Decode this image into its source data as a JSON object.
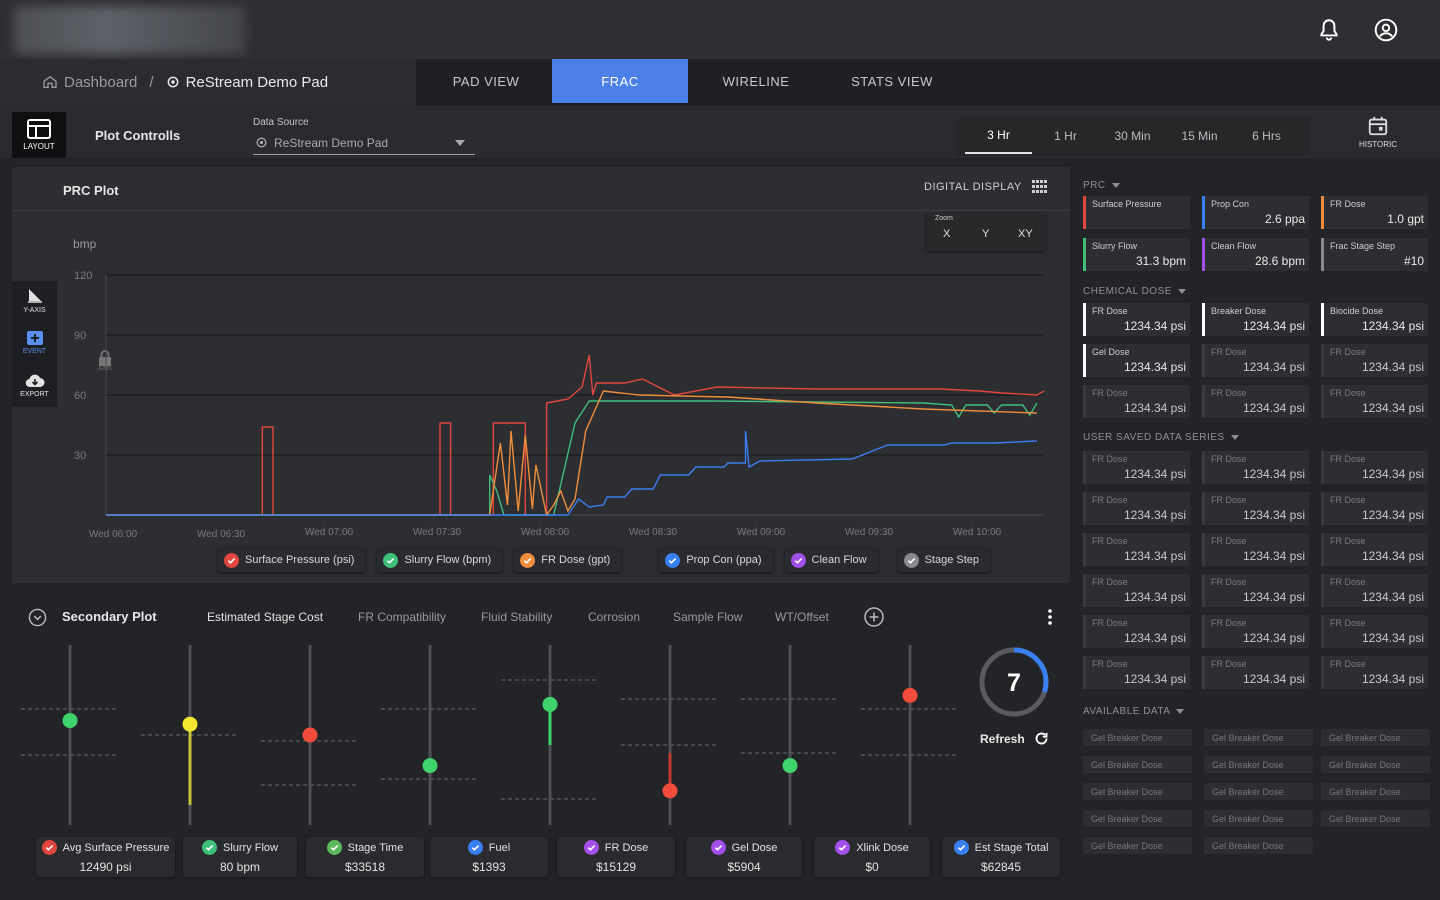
{
  "header": {
    "bell_icon": "bell-icon",
    "user_icon": "user-circle-icon"
  },
  "breadcrumb": {
    "home": "Dashboard",
    "separator": "/",
    "pad": "ReStream Demo Pad"
  },
  "nav_tabs": [
    {
      "label": "PAD VIEW",
      "active": false
    },
    {
      "label": "FRAC",
      "active": true
    },
    {
      "label": "WIRELINE",
      "active": false
    },
    {
      "label": "STATS VIEW",
      "active": false
    }
  ],
  "controls": {
    "layout_label": "LAYOUT",
    "plot_controls_label": "Plot Controlls",
    "data_source_label": "Data Source",
    "data_source_value": "ReStream Demo Pad",
    "time_ranges": [
      "3 Hr",
      "1 Hr",
      "30 Min",
      "15 Min",
      "6 Hrs"
    ],
    "active_time_range": "3 Hr",
    "historic_label": "HISTORIC"
  },
  "plot": {
    "title": "PRC Plot",
    "digital_display": "DIGITAL DISPLAY",
    "zoom_label": "Zoom",
    "zoom_options": [
      "X",
      "Y",
      "XY"
    ],
    "tools": [
      {
        "label": "Y-AXIS",
        "icon": "y-axis-icon"
      },
      {
        "label": "EVENT",
        "icon": "add-event-icon"
      },
      {
        "label": "EXPORT",
        "icon": "cloud-download-icon"
      }
    ],
    "axis_lock_label": "AXIS"
  },
  "chart_data": {
    "type": "line",
    "ylabel": "bmp",
    "yticks": [
      120,
      90,
      60,
      30
    ],
    "ylim": [
      0,
      120
    ],
    "xticks": [
      "Wed 06:00",
      "Wed 06:30",
      "Wed 07:00",
      "Wed 07:30",
      "Wed 08:00",
      "Wed 08:30",
      "Wed 09:00",
      "Wed 09:30",
      "Wed 10:00"
    ],
    "xlim": [
      0,
      264
    ],
    "grid": true,
    "legend_position": "bottom",
    "series": [
      {
        "name": "Surface Pressure (psi)",
        "color": "#e2473f",
        "points": [
          [
            0,
            0
          ],
          [
            44,
            0
          ],
          [
            44,
            44
          ],
          [
            47,
            44
          ],
          [
            47,
            0
          ],
          [
            94,
            0
          ],
          [
            94,
            46
          ],
          [
            97,
            46
          ],
          [
            97,
            0
          ],
          [
            109,
            0
          ],
          [
            109,
            46
          ],
          [
            118,
            46
          ],
          [
            118,
            0
          ],
          [
            124,
            0
          ],
          [
            124,
            56
          ],
          [
            130,
            58
          ],
          [
            134,
            64
          ],
          [
            136,
            80
          ],
          [
            137,
            60
          ],
          [
            138,
            66
          ],
          [
            146,
            66
          ],
          [
            151,
            68
          ],
          [
            160,
            60
          ],
          [
            172,
            64
          ],
          [
            200,
            63
          ],
          [
            235,
            63
          ],
          [
            246,
            62
          ],
          [
            252,
            61
          ],
          [
            262,
            60
          ],
          [
            264,
            62
          ]
        ]
      },
      {
        "name": "Slurry Flow (bpm)",
        "color": "#3fbf7a",
        "points": [
          [
            0,
            0
          ],
          [
            88,
            0
          ],
          [
            104,
            0
          ],
          [
            108,
            0
          ],
          [
            108,
            20
          ],
          [
            110,
            12
          ],
          [
            112,
            0
          ],
          [
            126,
            0
          ],
          [
            132,
            46
          ],
          [
            136,
            57
          ],
          [
            170,
            57
          ],
          [
            230,
            56
          ],
          [
            238,
            55
          ],
          [
            240,
            49
          ],
          [
            242,
            55
          ],
          [
            248,
            55
          ],
          [
            250,
            51
          ],
          [
            252,
            55
          ],
          [
            258,
            55
          ],
          [
            260,
            50
          ],
          [
            262,
            56
          ]
        ]
      },
      {
        "name": "FR Dose (gpt)",
        "color": "#ee8e3d",
        "points": [
          [
            0,
            0
          ],
          [
            108,
            0
          ],
          [
            111,
            36
          ],
          [
            113,
            5
          ],
          [
            114,
            42
          ],
          [
            116,
            2
          ],
          [
            118,
            40
          ],
          [
            120,
            3
          ],
          [
            121,
            25
          ],
          [
            124,
            0
          ],
          [
            126,
            5
          ],
          [
            128,
            12
          ],
          [
            130,
            2
          ],
          [
            132,
            8
          ],
          [
            135,
            42
          ],
          [
            140,
            62
          ],
          [
            150,
            60
          ],
          [
            175,
            59
          ],
          [
            200,
            56
          ],
          [
            230,
            53
          ],
          [
            262,
            51
          ]
        ]
      },
      {
        "name": "Prop Con (ppa)",
        "color": "#3a7ff0",
        "points": [
          [
            0,
            0
          ],
          [
            130,
            0
          ],
          [
            133,
            8
          ],
          [
            136,
            4
          ],
          [
            140,
            5
          ],
          [
            141,
            9
          ],
          [
            146,
            9
          ],
          [
            148,
            13
          ],
          [
            154,
            13
          ],
          [
            156,
            20
          ],
          [
            164,
            20
          ],
          [
            166,
            24
          ],
          [
            174,
            24
          ],
          [
            175,
            26
          ],
          [
            180,
            26
          ],
          [
            180,
            42
          ],
          [
            181,
            24
          ],
          [
            184,
            27
          ],
          [
            210,
            28
          ],
          [
            220,
            35
          ],
          [
            236,
            35
          ],
          [
            238,
            36
          ],
          [
            250,
            36
          ],
          [
            262,
            37
          ]
        ]
      },
      {
        "name": "Clean Flow",
        "color": "#a250e8",
        "points": []
      },
      {
        "name": "Stage Step",
        "color": "#8a8a8e",
        "points": []
      }
    ]
  },
  "legend_checks": [
    "#e2473f",
    "#3fbf7a",
    "#ee8e3d",
    "#3a7ff0",
    "#a250e8",
    "#8a8a8e"
  ],
  "secondary": {
    "title": "Secondary Plot",
    "tabs": [
      "Estimated Stage Cost",
      "FR Compatibility",
      "Fluid Stability",
      "Corrosion",
      "Sample Flow",
      "WT/Offset"
    ],
    "active_tab": "Estimated Stage Cost",
    "gauge_value": "7",
    "gauge_fraction": 0.3,
    "refresh_label": "Refresh",
    "sliders": [
      {
        "level": 0.58,
        "color": "#3fd46b",
        "fill": "#3fd46b"
      },
      {
        "level": 0.56,
        "color": "#f2e62f",
        "fill": "#c9c23a"
      },
      {
        "level": 0.5,
        "color": "#f04b3b",
        "fill": "#c03a32"
      },
      {
        "level": 0.33,
        "color": "#3fd46b",
        "fill": "#3fd46b"
      },
      {
        "level": 0.67,
        "color": "#3fd46b",
        "fill": "#3fd46b"
      },
      {
        "level": 0.19,
        "color": "#f04b3b",
        "fill": "#c03a32"
      },
      {
        "level": 0.33,
        "color": "#3fd46b",
        "fill": "#3fd46b"
      },
      {
        "level": 0.72,
        "color": "#f04b3b",
        "fill": "#c03a32"
      }
    ],
    "cards": [
      {
        "label": "Avg Surface Pressure",
        "value": "12490 psi",
        "color": "#e2473f"
      },
      {
        "label": "Slurry Flow",
        "value": "80 bpm",
        "color": "#3fbf7a"
      },
      {
        "label": "Stage Time",
        "value": "$33518",
        "color": "#5cb85c"
      },
      {
        "label": "Fuel",
        "value": "$1393",
        "color": "#3a7ff0"
      },
      {
        "label": "FR Dose",
        "value": "$15129",
        "color": "#a250e8"
      },
      {
        "label": "Gel Dose",
        "value": "$5904",
        "color": "#a250e8"
      },
      {
        "label": "Xlink Dose",
        "value": "$0",
        "color": "#a250e8"
      },
      {
        "label": "Est Stage Total",
        "value": "$62845",
        "color": "#3a7ff0"
      }
    ]
  },
  "right_panel": {
    "prc_title": "PRC",
    "prc": [
      {
        "label": "Surface Pressure",
        "value": "",
        "color": "#e2473f"
      },
      {
        "label": "Prop Con",
        "value": "2.6 ppa",
        "color": "#3a7ff0"
      },
      {
        "label": "FR Dose",
        "value": "1.0 gpt",
        "color": "#ee8e3d"
      },
      {
        "label": "Slurry Flow",
        "value": "31.3 bpm",
        "color": "#3fbf7a"
      },
      {
        "label": "Clean Flow",
        "value": "28.6 bpm",
        "color": "#a250e8"
      },
      {
        "label": "Frac Stage Step",
        "value": "#10",
        "color": "#8a8a8e"
      }
    ],
    "chemical_title": "CHEMICAL DOSE",
    "chemical": [
      {
        "label": "FR Dose",
        "value": "1234.34 psi",
        "dim": false
      },
      {
        "label": "Breaker Dose",
        "value": "1234.34 psi",
        "dim": false
      },
      {
        "label": "Biocide Dose",
        "value": "1234.34 psi",
        "dim": false
      },
      {
        "label": "Gel Dose",
        "value": "1234.34 psi",
        "dim": false
      },
      {
        "label": "FR Dose",
        "value": "1234.34 psi",
        "dim": true
      },
      {
        "label": "FR Dose",
        "value": "1234.34 psi",
        "dim": true
      },
      {
        "label": "FR Dose",
        "value": "1234.34 psi",
        "dim": true
      },
      {
        "label": "FR Dose",
        "value": "1234.34 psi",
        "dim": true
      },
      {
        "label": "FR Dose",
        "value": "1234.34 psi",
        "dim": true
      }
    ],
    "user_title": "USER SAVED DATA SERIES",
    "user_series": [
      {
        "label": "FR Dose",
        "value": "1234.34 psi"
      },
      {
        "label": "FR Dose",
        "value": "1234.34 psi"
      },
      {
        "label": "FR Dose",
        "value": "1234.34 psi"
      },
      {
        "label": "FR Dose",
        "value": "1234.34 psi"
      },
      {
        "label": "FR Dose",
        "value": "1234.34 psi"
      },
      {
        "label": "FR Dose",
        "value": "1234.34 psi"
      },
      {
        "label": "FR Dose",
        "value": "1234.34 psi"
      },
      {
        "label": "FR Dose",
        "value": "1234.34 psi"
      },
      {
        "label": "FR Dose",
        "value": "1234.34 psi"
      },
      {
        "label": "FR Dose",
        "value": "1234.34 psi"
      },
      {
        "label": "FR Dose",
        "value": "1234.34 psi"
      },
      {
        "label": "FR Dose",
        "value": "1234.34 psi"
      },
      {
        "label": "FR Dose",
        "value": "1234.34 psi"
      },
      {
        "label": "FR Dose",
        "value": "1234.34 psi"
      },
      {
        "label": "FR Dose",
        "value": "1234.34 psi"
      },
      {
        "label": "FR Dose",
        "value": "1234.34 psi"
      },
      {
        "label": "FR Dose",
        "value": "1234.34 psi"
      },
      {
        "label": "FR Dose",
        "value": "1234.34 psi"
      }
    ],
    "available_title": "AVAILABLE DATA",
    "available": [
      "Gel Breaker Dose",
      "Gel Breaker Dose",
      "Gel Breaker Dose",
      "Gel Breaker Dose",
      "Gel Breaker Dose",
      "Gel Breaker Dose",
      "Gel Breaker Dose",
      "Gel Breaker Dose",
      "Gel Breaker Dose",
      "Gel Breaker Dose",
      "Gel Breaker Dose",
      "Gel Breaker Dose",
      "Gel Breaker Dose",
      "Gel Breaker Dose"
    ]
  }
}
